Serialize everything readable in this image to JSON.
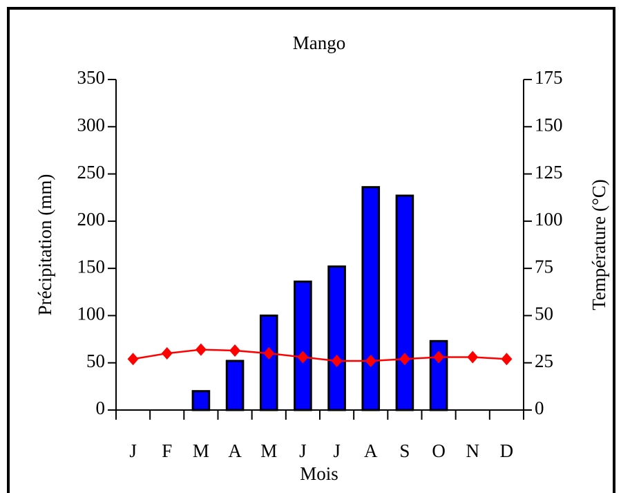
{
  "chart_data": {
    "type": "bar",
    "title": "Mango",
    "x_label": "Mois",
    "y_label": "Précipitation (mm)",
    "y2_label": "Température (°C)",
    "categories": [
      "J",
      "F",
      "M",
      "A",
      "M",
      "J",
      "J",
      "A",
      "S",
      "O",
      "N",
      "D"
    ],
    "series": [
      {
        "type": "bar",
        "color": "#0000ff",
        "values": [
          0,
          0,
          20,
          52,
          100,
          136,
          152,
          236,
          227,
          73,
          0,
          0
        ]
      },
      {
        "type": "line",
        "axis": "y2",
        "color": "#ff0000",
        "values": [
          27,
          30,
          32,
          31.5,
          30,
          28,
          26,
          26,
          27,
          28,
          28,
          27
        ]
      }
    ],
    "ylim": [
      0,
      350
    ],
    "yticks": [
      0,
      50,
      100,
      150,
      200,
      250,
      300,
      350
    ],
    "y2lim": [
      0,
      175
    ],
    "y2ticks": [
      0,
      25,
      50,
      75,
      100,
      125,
      150,
      175
    ],
    "grid": false
  }
}
